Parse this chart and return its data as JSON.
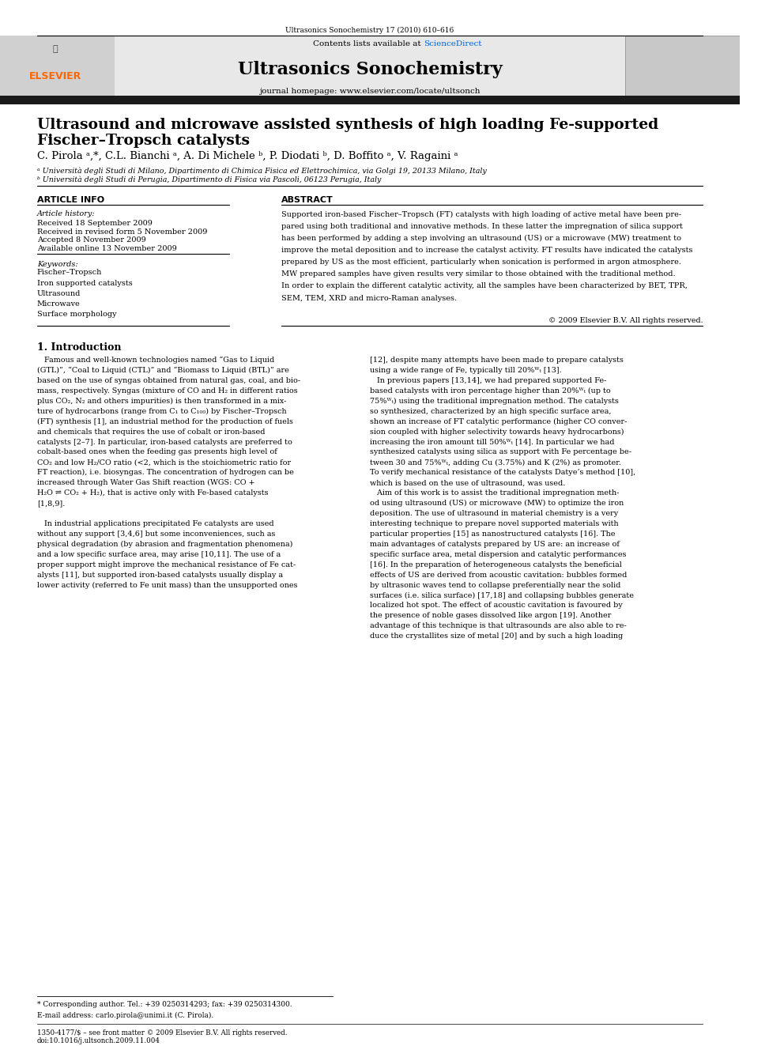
{
  "page_width": 9.92,
  "page_height": 13.23,
  "bg_color": "#ffffff",
  "journal_ref": "Ultrasonics Sonochemistry 17 (2010) 610–616",
  "header_bg": "#e8e8e8",
  "contents_text": "Contents lists available at",
  "sciencedirect_text": "ScienceDirect",
  "sciencedirect_color": "#0066cc",
  "journal_name": "Ultrasonics Sonochemistry",
  "journal_homepage": "journal homepage: www.elsevier.com/locate/ultsonch",
  "elsevier_color": "#FF6600",
  "paper_title_line1": "Ultrasound and microwave assisted synthesis of high loading Fe-supported",
  "paper_title_line2": "Fischer–Tropsch catalysts",
  "authors": "C. Pirola ᵃ,*, C.L. Bianchi ᵃ, A. Di Michele ᵇ, P. Diodati ᵇ, D. Boffito ᵃ, V. Ragaini ᵃ",
  "affil_a": "ᵃ Università degli Studi di Milano, Dipartimento di Chimica Fisica ed Elettrochimica, via Golgi 19, 20133 Milano, Italy",
  "affil_b": "ᵇ Università degli Studi di Perugia, Dipartimento di Fisica via Pascoli, 06123 Perugia, Italy",
  "article_info_header": "ARTICLE INFO",
  "abstract_header": "ABSTRACT",
  "article_history_label": "Article history:",
  "received1": "Received 18 September 2009",
  "received2": "Received in revised form 5 November 2009",
  "accepted": "Accepted 8 November 2009",
  "available": "Available online 13 November 2009",
  "keywords_label": "Keywords:",
  "kw1": "Fischer–Tropsch",
  "kw2": "Iron supported catalysts",
  "kw3": "Ultrasound",
  "kw4": "Microwave",
  "kw5": "Surface morphology",
  "abstract_text": "Supported iron-based Fischer–Tropsch (FT) catalysts with high loading of active metal have been prepared using both traditional and innovative methods. In these latter the impregnation of silica support has been performed by adding a step involving an ultrasound (US) or a microwave (MW) treatment to improve the metal deposition and to increase the catalyst activity. FT results have indicated the catalysts prepared by US as the most efficient, particularly when sonication is performed in argon atmosphere. MW prepared samples have given results very similar to those obtained with the traditional method. In order to explain the different catalytic activity, all the samples have been characterized by BET, TPR, SEM, TEM, XRD and micro-Raman analyses.",
  "copyright": "© 2009 Elsevier B.V. All rights reserved.",
  "intro_header": "1. Introduction",
  "intro_col1_p1": "Famous and well-known technologies named “Gas to Liquid (GTL)”, “Coal to Liquid (CTL)” and “Biomass to Liquid (BTL)” are based on the use of syngas obtained from natural gas, coal, and biomass, respectively. Syngas (mixture of CO and H₂ in different ratios plus CO₂, N₂ and others impurities) is then transformed in a mixture of hydrocarbons (range from C₁ to C₁₀₀) by Fischer–Tropsch (FT) synthesis [1], an industrial method for the production of fuels and chemicals that requires the use of cobalt or iron-based catalysts [2–7]. In particular, iron-based catalysts are preferred to cobalt-based ones when the feeding gas presents high level of CO₂ and low H₂/CO ratio (<2, which is the stoichiometric ratio for FT reaction), i.e. biosyngas. The concentration of hydrogen can be increased through Water Gas Shift reaction (WGS: CO + H₂O ⇌ CO₂ + H₂), that is active only with Fe-based catalysts [1,8,9].",
  "intro_col1_p2": "In industrial applications precipitated Fe catalysts are used without any support [3,4,6] but some inconveniences, such as physical degradation (by abrasion and fragmentation phenomena) and a low specific surface area, may arise [10,11]. The use of a proper support might improve the mechanical resistance of Fe catalysts [11], but supported iron-based catalysts usually display a lower activity (referred to Fe unit mass) than the unsupported ones",
  "intro_col2_p1": "[12], despite many attempts have been made to prepare catalysts using a wide range of Fe, typically till 20%ᵂₜ [13].",
  "intro_col2_p2": "In previous papers [13,14], we had prepared supported Fe-based catalysts with iron percentage higher than 20%ᵂₜ (up to 75%ᵂₜ) using the traditional impregnation method. The catalysts so synthesized, characterized by an high specific surface area, shown an increase of FT catalytic performance (higher CO conversion coupled with higher selectivity towards heavy hydrocarbons) increasing the iron amount till 50%ᵂₜ [14]. In particular we had synthesized catalysts using silica as support with Fe percentage between 30 and 75%ᵂₜ, adding Cu (3.75%) and K (2%) as promoter. To verify mechanical resistance of the catalysts Datye’s method [10], which is based on the use of ultrasound, was used.",
  "intro_col2_p3": "Aim of this work is to assist the traditional impregnation method using ultrasound (US) or microwave (MW) to optimize the iron deposition. The use of ultrasound in material chemistry is a very interesting technique to prepare novel supported materials with particular properties [15] as nanostructured catalysts [16]. The main advantages of catalysts prepared by US are: an increase of specific surface area, metal dispersion and catalytic performances [16]. In the preparation of heterogeneous catalysts the beneficial effects of US are derived from acoustic cavitation: bubbles formed by ultrasonic waves tend to collapse preferentially near the solid surfaces (i.e. silica surface) [17,18] and collapsing bubbles generate localized hot spot. The effect of acoustic cavitation is favoured by the presence of noble gases dissolved like argon [19]. Another advantage of this technique is that ultrasounds are also able to reduce the crystallites size of metal [20] and by such a high loading",
  "footnote_star": "* Corresponding author. Tel.: +39 0250314293; fax: +39 0250314300.",
  "footnote_email": "E-mail address: carlo.pirola@unimi.it (C. Pirola).",
  "footer_issn": "1350-4177/$ – see front matter © 2009 Elsevier B.V. All rights reserved.",
  "footer_doi": "doi:10.1016/j.ultsonch.2009.11.004"
}
